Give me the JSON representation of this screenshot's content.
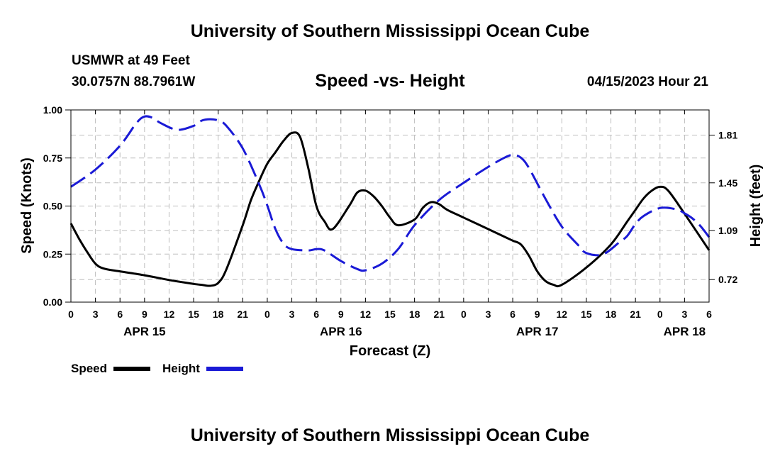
{
  "page": {
    "title_top": "University of Southern Mississippi Ocean Cube",
    "title_bottom": "University of Southern Mississippi Ocean Cube",
    "station": "USMWR at 49 Feet",
    "coords": "30.0757N  88.7961W",
    "chart_title": "Speed -vs- Height",
    "datetime": "04/15/2023 Hour 21"
  },
  "colors": {
    "speed": "#000000",
    "height": "#1a1ad6",
    "grid": "#bdbdbd"
  },
  "chart_data": {
    "type": "line",
    "title": "Speed -vs- Height",
    "xlabel": "Forecast (Z)",
    "ylabel": "Speed (Knots)",
    "y2label": "Height (feet)",
    "xlim": [
      0,
      78
    ],
    "ylim": [
      0,
      1
    ],
    "y2lim": [
      0.55,
      2.0
    ],
    "yticks": [
      0,
      0.25,
      0.5,
      0.75,
      1.0
    ],
    "yticklabels": [
      "0.00",
      "0.25",
      "0.50",
      "0.75",
      "1.00"
    ],
    "y2ticks": [
      0.72,
      1.09,
      1.45,
      1.81
    ],
    "y2ticklabels": [
      "0.72",
      "1.09",
      "1.45",
      "1.81"
    ],
    "xticks": [
      0,
      3,
      6,
      9,
      12,
      15,
      18,
      21,
      24,
      27,
      30,
      33,
      36,
      39,
      42,
      45,
      48,
      51,
      54,
      57,
      60,
      63,
      66,
      69,
      72,
      75,
      78
    ],
    "xticklabels": [
      "0",
      "3",
      "6",
      "9",
      "12",
      "15",
      "18",
      "21",
      "0",
      "3",
      "6",
      "9",
      "12",
      "15",
      "18",
      "21",
      "0",
      "3",
      "6",
      "9",
      "12",
      "15",
      "18",
      "21",
      "0",
      "3",
      "6"
    ],
    "date_labels": [
      {
        "x": 9,
        "label": "APR 15"
      },
      {
        "x": 33,
        "label": "APR 16"
      },
      {
        "x": 57,
        "label": "APR 17"
      },
      {
        "x": 75,
        "label": "APR 18"
      }
    ],
    "legend": [
      "Speed",
      "Height"
    ],
    "series": [
      {
        "name": "Speed",
        "axis": "left",
        "x": [
          0,
          1,
          2,
          3,
          4,
          6,
          9,
          12,
          15,
          16,
          17,
          18,
          19,
          21,
          22,
          23,
          24,
          25,
          26,
          27,
          28,
          29,
          30,
          31,
          32,
          34,
          35,
          36,
          37,
          38,
          39,
          40,
          42,
          43,
          44,
          45,
          46,
          48,
          51,
          53,
          54,
          55,
          56,
          57,
          58,
          59,
          60,
          63,
          66,
          68,
          69,
          70,
          71,
          72,
          73,
          75,
          78
        ],
        "y": [
          0.41,
          0.33,
          0.26,
          0.2,
          0.175,
          0.16,
          0.14,
          0.115,
          0.095,
          0.09,
          0.085,
          0.1,
          0.17,
          0.4,
          0.53,
          0.63,
          0.72,
          0.78,
          0.84,
          0.88,
          0.86,
          0.7,
          0.5,
          0.42,
          0.38,
          0.5,
          0.57,
          0.58,
          0.55,
          0.5,
          0.44,
          0.4,
          0.43,
          0.49,
          0.52,
          0.51,
          0.48,
          0.44,
          0.38,
          0.34,
          0.32,
          0.3,
          0.24,
          0.16,
          0.11,
          0.09,
          0.09,
          0.18,
          0.3,
          0.42,
          0.48,
          0.54,
          0.58,
          0.6,
          0.58,
          0.46,
          0.27
        ]
      },
      {
        "name": "Height",
        "axis": "right",
        "x": [
          0,
          3,
          6,
          8,
          9,
          10,
          11,
          13,
          15,
          16,
          17,
          18,
          19,
          21,
          23,
          24,
          25,
          26,
          27,
          29,
          30,
          31,
          33,
          35,
          36,
          38,
          40,
          42,
          45,
          48,
          51,
          53,
          54,
          55,
          56,
          58,
          60,
          62,
          63,
          65,
          67,
          68,
          69,
          70,
          72,
          74,
          75,
          76,
          77,
          78
        ],
        "y": [
          1.42,
          1.55,
          1.73,
          1.9,
          1.95,
          1.94,
          1.9,
          1.85,
          1.88,
          1.92,
          1.93,
          1.92,
          1.88,
          1.71,
          1.44,
          1.28,
          1.1,
          0.99,
          0.95,
          0.94,
          0.95,
          0.94,
          0.86,
          0.8,
          0.79,
          0.84,
          0.95,
          1.13,
          1.32,
          1.45,
          1.57,
          1.64,
          1.66,
          1.64,
          1.56,
          1.33,
          1.12,
          0.98,
          0.92,
          0.91,
          1.0,
          1.05,
          1.14,
          1.2,
          1.26,
          1.25,
          1.22,
          1.18,
          1.12,
          1.04
        ]
      }
    ]
  }
}
